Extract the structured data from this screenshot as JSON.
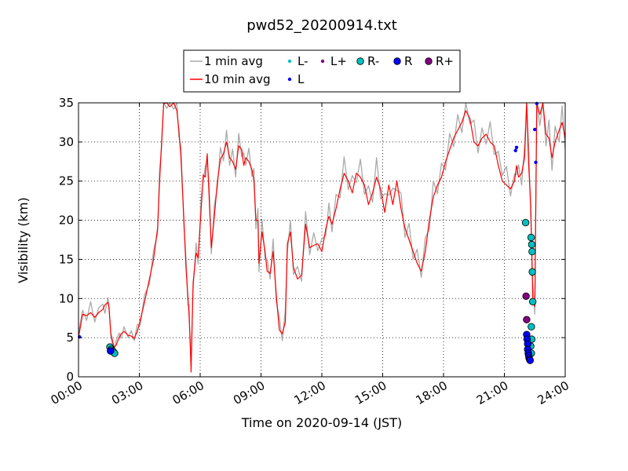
{
  "chart_data": {
    "type": "line",
    "title": "pwd52_20200914.txt",
    "xlabel": "Time on 2020-09-14 (JST)",
    "ylabel": "Visibility (km)",
    "xlim_hours": [
      0,
      24
    ],
    "ylim": [
      0,
      35
    ],
    "x_ticks": [
      {
        "hour": 0,
        "label": "00:00"
      },
      {
        "hour": 3,
        "label": "03:00"
      },
      {
        "hour": 6,
        "label": "06:00"
      },
      {
        "hour": 9,
        "label": "09:00"
      },
      {
        "hour": 12,
        "label": "12:00"
      },
      {
        "hour": 15,
        "label": "15:00"
      },
      {
        "hour": 18,
        "label": "18:00"
      },
      {
        "hour": 21,
        "label": "21:00"
      },
      {
        "hour": 24,
        "label": "24:00"
      }
    ],
    "y_ticks": [
      0,
      5,
      10,
      15,
      20,
      25,
      30,
      35
    ],
    "grid": true,
    "legend_position": "top-center",
    "legend": [
      {
        "label": "1 min avg",
        "kind": "line",
        "color": "#aaaaaa"
      },
      {
        "label": "10 min avg",
        "kind": "line",
        "color": "#ff0000"
      },
      {
        "label": "L-",
        "kind": "dot-small",
        "color": "#00bfbf"
      },
      {
        "label": "L",
        "kind": "dot-small",
        "color": "#0000ff"
      },
      {
        "label": "L+",
        "kind": "dot-small",
        "color": "#800080"
      },
      {
        "label": "R-",
        "kind": "circle",
        "color": "#00bfbf"
      },
      {
        "label": "R",
        "kind": "circle",
        "color": "#0000ff"
      },
      {
        "label": "R+",
        "kind": "circle",
        "color": "#800080"
      }
    ],
    "series": [
      {
        "name": "10 min avg",
        "color": "#ff0000",
        "x_hours": [
          0.0,
          0.2,
          0.4,
          0.6,
          0.8,
          1.0,
          1.2,
          1.3,
          1.45,
          1.5,
          1.6,
          1.75,
          1.85,
          2.0,
          2.1,
          2.25,
          2.45,
          2.6,
          2.75,
          2.9,
          3.05,
          3.25,
          3.5,
          3.7,
          3.9,
          4.0,
          4.1,
          4.2,
          4.35,
          4.5,
          4.7,
          4.85,
          4.95,
          5.05,
          5.2,
          5.3,
          5.4,
          5.45,
          5.5,
          5.55,
          5.65,
          5.8,
          5.9,
          6.05,
          6.15,
          6.25,
          6.35,
          6.45,
          6.55,
          6.7,
          6.85,
          7.0,
          7.15,
          7.3,
          7.45,
          7.6,
          7.75,
          7.9,
          8.05,
          8.15,
          8.25,
          8.4,
          8.55,
          8.65,
          8.75,
          8.85,
          8.9,
          9.05,
          9.2,
          9.3,
          9.45,
          9.6,
          9.75,
          9.9,
          10.05,
          10.2,
          10.3,
          10.45,
          10.6,
          10.8,
          11.0,
          11.2,
          11.4,
          11.6,
          11.8,
          12.0,
          12.2,
          12.35,
          12.5,
          12.7,
          12.9,
          13.1,
          13.3,
          13.5,
          13.7,
          13.9,
          14.1,
          14.3,
          14.5,
          14.7,
          14.9,
          15.1,
          15.3,
          15.5,
          15.7,
          15.9,
          16.1,
          16.3,
          16.5,
          16.7,
          16.9,
          17.1,
          17.3,
          17.5,
          17.7,
          17.9,
          18.1,
          18.3,
          18.5,
          18.7,
          18.9,
          19.1,
          19.3,
          19.5,
          19.7,
          19.9,
          20.1,
          20.3,
          20.5,
          20.7,
          20.9,
          21.1,
          21.3,
          21.5,
          21.6,
          21.7,
          21.85,
          22.0,
          22.1,
          22.2,
          22.3,
          22.4,
          22.5,
          22.6,
          22.75,
          22.9,
          23.05,
          23.2,
          23.35,
          23.5,
          23.7,
          23.85,
          24.0
        ],
        "y": [
          5.0,
          8.0,
          7.8,
          8.2,
          7.6,
          8.2,
          8.6,
          9.2,
          9.5,
          8.8,
          5.5,
          3.8,
          4.0,
          5.0,
          5.5,
          5.8,
          5.3,
          5.2,
          4.9,
          5.8,
          7.3,
          9.5,
          12.5,
          15.0,
          19.0,
          25.0,
          30.0,
          34.9,
          35.0,
          34.5,
          35.0,
          34.0,
          31.5,
          28.0,
          20.0,
          14.0,
          10.0,
          8.0,
          5.0,
          0.6,
          12.0,
          15.8,
          15.2,
          21.5,
          25.8,
          25.5,
          28.5,
          22.5,
          16.5,
          20.5,
          25.0,
          27.8,
          28.5,
          30.0,
          28.0,
          27.5,
          26.5,
          29.5,
          29.0,
          27.0,
          28.0,
          27.5,
          26.5,
          25.0,
          20.0,
          20.0,
          14.5,
          18.5,
          16.0,
          13.5,
          13.2,
          16.0,
          10.5,
          6.0,
          5.5,
          7.0,
          17.0,
          18.5,
          14.0,
          12.5,
          13.0,
          19.5,
          16.5,
          16.8,
          17.0,
          16.0,
          19.0,
          20.5,
          19.5,
          21.5,
          24.0,
          26.0,
          25.0,
          23.5,
          26.0,
          25.5,
          24.5,
          22.0,
          23.5,
          25.5,
          24.0,
          21.0,
          24.5,
          22.0,
          25.0,
          21.5,
          19.0,
          17.5,
          16.0,
          14.5,
          13.5,
          16.0,
          20.0,
          23.0,
          24.5,
          25.5,
          27.5,
          29.0,
          30.5,
          31.5,
          32.5,
          34.0,
          33.0,
          30.0,
          29.5,
          30.5,
          31.0,
          30.0,
          29.5,
          27.0,
          25.0,
          24.5,
          24.0,
          25.0,
          27.0,
          25.5,
          26.0,
          28.0,
          35.0,
          27.0,
          22.0,
          10.0,
          9.0,
          35.0,
          33.5,
          35.0,
          31.0,
          30.5,
          28.0,
          30.0,
          31.5,
          32.5,
          30.5
        ]
      },
      {
        "name": "1 min avg",
        "color": "#aaaaaa",
        "x_hours": [
          0.0,
          0.2,
          0.4,
          0.6,
          0.8,
          1.0,
          1.2,
          1.3,
          1.45,
          1.5,
          1.6,
          1.75,
          1.85,
          2.0,
          2.1,
          2.25,
          2.45,
          2.6,
          2.75,
          2.9,
          3.05,
          3.25,
          3.5,
          3.7,
          3.9,
          4.0,
          4.1,
          4.2,
          4.35,
          4.5,
          4.7,
          4.85,
          4.95,
          5.05,
          5.2,
          5.3,
          5.4,
          5.45,
          5.5,
          5.55,
          5.65,
          5.8,
          5.9,
          6.05,
          6.15,
          6.25,
          6.35,
          6.45,
          6.55,
          6.7,
          6.85,
          7.0,
          7.15,
          7.3,
          7.45,
          7.6,
          7.75,
          7.9,
          8.05,
          8.15,
          8.25,
          8.4,
          8.55,
          8.65,
          8.75,
          8.85,
          8.9,
          9.05,
          9.2,
          9.3,
          9.45,
          9.6,
          9.75,
          9.9,
          10.05,
          10.2,
          10.3,
          10.45,
          10.6,
          10.8,
          11.0,
          11.2,
          11.4,
          11.6,
          11.8,
          12.0,
          12.2,
          12.35,
          12.5,
          12.7,
          12.9,
          13.1,
          13.3,
          13.5,
          13.7,
          13.9,
          14.1,
          14.3,
          14.5,
          14.7,
          14.9,
          15.1,
          15.3,
          15.5,
          15.7,
          15.9,
          16.1,
          16.3,
          16.5,
          16.7,
          16.9,
          17.1,
          17.3,
          17.5,
          17.7,
          17.9,
          18.1,
          18.3,
          18.5,
          18.7,
          18.9,
          19.1,
          19.3,
          19.5,
          19.7,
          19.9,
          20.1,
          20.3,
          20.5,
          20.7,
          20.9,
          21.1,
          21.3,
          21.5,
          21.6,
          21.7,
          21.85,
          22.0,
          22.1,
          22.2,
          22.3,
          22.4,
          22.5,
          22.6,
          22.75,
          22.9,
          23.05,
          23.2,
          23.35,
          23.5,
          23.7,
          23.85,
          24.0
        ],
        "y": [
          5.6,
          8.5,
          7.2,
          9.6,
          7.0,
          8.8,
          9.3,
          8.1,
          10.1,
          9.3,
          5.0,
          3.2,
          4.6,
          5.6,
          4.9,
          6.4,
          5.0,
          5.9,
          4.6,
          6.7,
          6.6,
          10.4,
          11.9,
          16.1,
          18.4,
          26.3,
          29.4,
          35.0,
          34.3,
          35.0,
          34.2,
          35.0,
          30.7,
          29.3,
          19.2,
          15.2,
          9.1,
          9.2,
          4.4,
          2.5,
          11.2,
          17.1,
          14.4,
          22.9,
          25.0,
          26.9,
          27.7,
          24.1,
          15.7,
          22.0,
          24.2,
          29.3,
          27.6,
          31.5,
          27.0,
          29.1,
          25.5,
          31.1,
          28.1,
          28.6,
          27.0,
          29.2,
          25.6,
          26.6,
          18.9,
          21.5,
          13.4,
          20.1,
          15.1,
          15.0,
          12.5,
          17.6,
          9.6,
          7.6,
          4.6,
          8.6,
          16.0,
          20.0,
          13.1,
          14.1,
          12.2,
          21.1,
          15.6,
          18.4,
          16.1,
          17.6,
          18.1,
          22.2,
          18.5,
          23.3,
          22.9,
          28.1,
          23.9,
          25.7,
          24.8,
          27.8,
          23.3,
          24.4,
          22.3,
          28.0,
          22.7,
          23.4,
          23.2,
          24.1,
          23.8,
          23.5,
          17.8,
          19.6,
          15.0,
          16.3,
          12.7,
          17.8,
          18.8,
          25.0,
          23.4,
          27.3,
          26.4,
          31.1,
          29.4,
          33.5,
          31.2,
          35.0,
          32.3,
          32.8,
          28.6,
          31.8,
          29.7,
          32.6,
          28.4,
          28.8,
          25.7,
          26.9,
          23.1,
          25.9,
          25.8,
          27.1,
          24.5,
          29.6,
          35.0,
          29.2,
          20.5,
          12.0,
          8.0,
          35.0,
          32.1,
          35.0,
          29.5,
          32.8,
          26.4,
          32.0,
          30.0,
          34.6,
          29.1
        ]
      },
      {
        "name": "L-",
        "marker": "dot-small",
        "color": "#00bfbf",
        "x_hours": [],
        "y": []
      },
      {
        "name": "L",
        "marker": "dot-small",
        "color": "#0000ff",
        "x_hours": [
          0.05,
          21.55,
          21.6,
          22.5,
          22.55,
          22.6
        ],
        "y": [
          5.1,
          28.9,
          29.3,
          31.6,
          27.4,
          34.9
        ]
      },
      {
        "name": "L+",
        "marker": "dot-small",
        "color": "#800080",
        "x_hours": [],
        "y": []
      },
      {
        "name": "R-",
        "marker": "circle",
        "color": "#00bfbf",
        "x_hours": [
          1.55,
          1.62,
          1.68,
          1.72,
          1.78,
          22.05,
          22.32,
          22.35,
          22.37,
          22.38,
          22.4,
          22.33,
          22.35,
          22.3,
          22.33
        ],
        "y": [
          3.8,
          3.5,
          3.3,
          3.2,
          3.0,
          19.7,
          17.8,
          16.9,
          16.0,
          13.4,
          9.6,
          6.4,
          4.8,
          3.9,
          3.0
        ]
      },
      {
        "name": "R",
        "marker": "circle",
        "color": "#0000ff",
        "x_hours": [
          1.58,
          22.1,
          22.12,
          22.15,
          22.15,
          22.18,
          22.2,
          22.22,
          22.25,
          22.27
        ],
        "y": [
          3.3,
          5.4,
          4.8,
          4.2,
          3.5,
          3.0,
          2.7,
          2.4,
          2.2,
          2.1
        ]
      },
      {
        "name": "R+",
        "marker": "circle",
        "color": "#800080",
        "x_hours": [
          22.07,
          22.1
        ],
        "y": [
          10.3,
          7.3
        ]
      }
    ]
  }
}
